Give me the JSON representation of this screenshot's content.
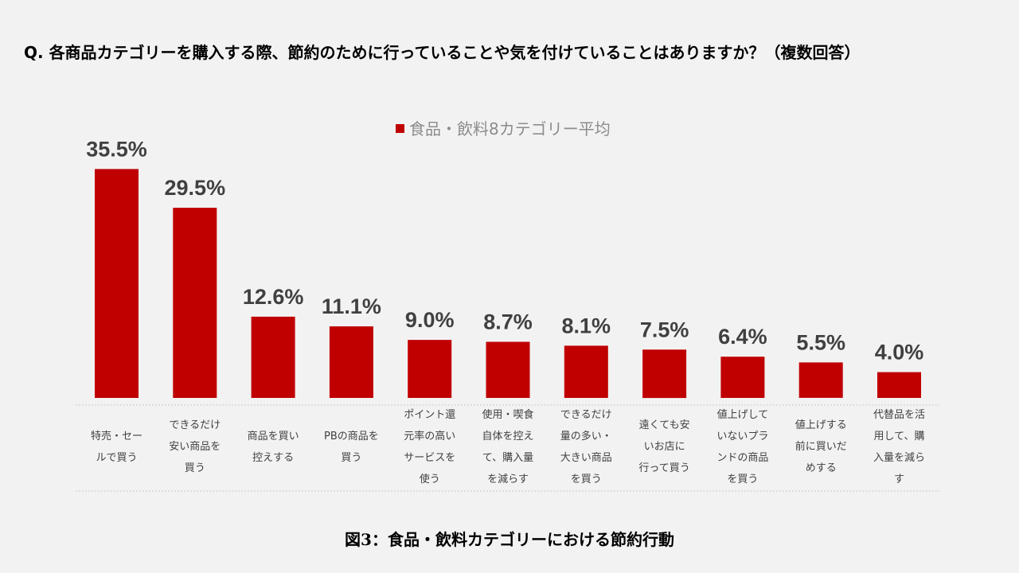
{
  "question": "Q. 各商品カテゴリーを購入する際、節約のために行っていることや気を付けていることはありますか？（複数回答）",
  "caption": "図3：食品・飲料カテゴリーにおける節約行動",
  "bar_color": "#c00000",
  "chart_data": {
    "type": "bar",
    "title": "Q. 各商品カテゴリーを購入する際、節約のために行っていることや気を付けていることはありますか？（複数回答）",
    "xlabel": "",
    "ylabel": "",
    "ylim": [
      0,
      40
    ],
    "legend": "top-center",
    "series": [
      {
        "name": "食品・飲料8カテゴリー平均",
        "values": [
          35.5,
          29.5,
          12.6,
          11.1,
          9.0,
          8.7,
          8.1,
          7.5,
          6.4,
          5.5,
          4.0
        ]
      }
    ],
    "value_labels": [
      "35.5%",
      "29.5%",
      "12.6%",
      "11.1%",
      "9.0%",
      "8.7%",
      "8.1%",
      "7.5%",
      "6.4%",
      "5.5%",
      "4.0%"
    ],
    "categories": [
      [
        "特売・セー",
        "ルで買う"
      ],
      [
        "できるだけ",
        "安い商品を",
        "買う"
      ],
      [
        "商品を買い",
        "控えする"
      ],
      [
        "PBの商品を",
        "買う"
      ],
      [
        "ポイント還",
        "元率の高い",
        "サービスを",
        "使う"
      ],
      [
        "使用・喫食",
        "自体を控え",
        "て、購入量",
        "を減らす"
      ],
      [
        "できるだけ",
        "量の多い・",
        "大きい商品",
        "を買う"
      ],
      [
        "遠くても安",
        "いお店に",
        "行って買う"
      ],
      [
        "値上げして",
        "いないプラ",
        "ンドの商品",
        "を買う"
      ],
      [
        "値上げする",
        "前に買いだ",
        "めする"
      ],
      [
        "代替品を活",
        "用して、購",
        "入量を減ら",
        "す"
      ]
    ]
  }
}
